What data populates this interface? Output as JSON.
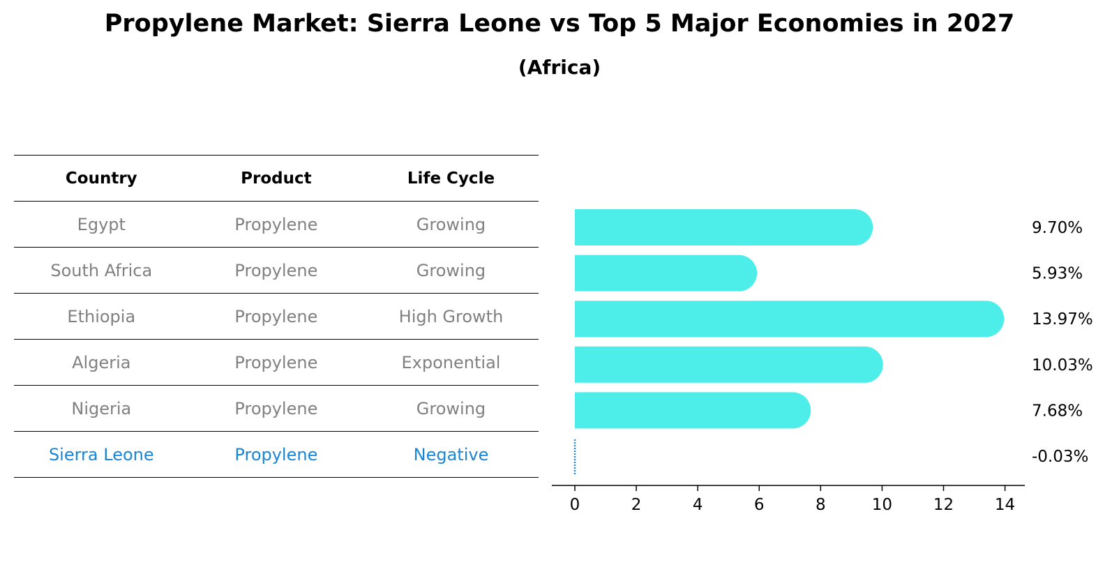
{
  "title": "Propylene Market: Sierra Leone vs Top 5 Major Economies in 2027",
  "subtitle": "(Africa)",
  "table": {
    "headers": [
      "Country",
      "Product",
      "Life Cycle"
    ],
    "rows": [
      [
        "Egypt",
        "Propylene",
        "Growing"
      ],
      [
        "South Africa",
        "Propylene",
        "Growing"
      ],
      [
        "Ethiopia",
        "Propylene",
        "High Growth"
      ],
      [
        "Algeria",
        "Propylene",
        "Exponential"
      ],
      [
        "Nigeria",
        "Propylene",
        "Growing"
      ],
      [
        "Sierra Leone",
        "Propylene",
        "Negative"
      ]
    ],
    "highlight_row": 5
  },
  "chart_data": {
    "type": "bar",
    "orientation": "horizontal",
    "categories": [
      "Egypt",
      "South Africa",
      "Ethiopia",
      "Algeria",
      "Nigeria",
      "Sierra Leone"
    ],
    "values": [
      9.7,
      5.93,
      13.97,
      10.03,
      7.68,
      -0.03
    ],
    "value_labels": [
      "9.70%",
      "5.93%",
      "13.97%",
      "10.03%",
      "7.68%",
      "-0.03%"
    ],
    "xticks": [
      0,
      2,
      4,
      6,
      8,
      10,
      12,
      14
    ],
    "xlim": [
      -0.75,
      14.75
    ],
    "bar_color": "#4deeea",
    "highlight_color": "#1a85d4",
    "text_color": "#808080"
  }
}
